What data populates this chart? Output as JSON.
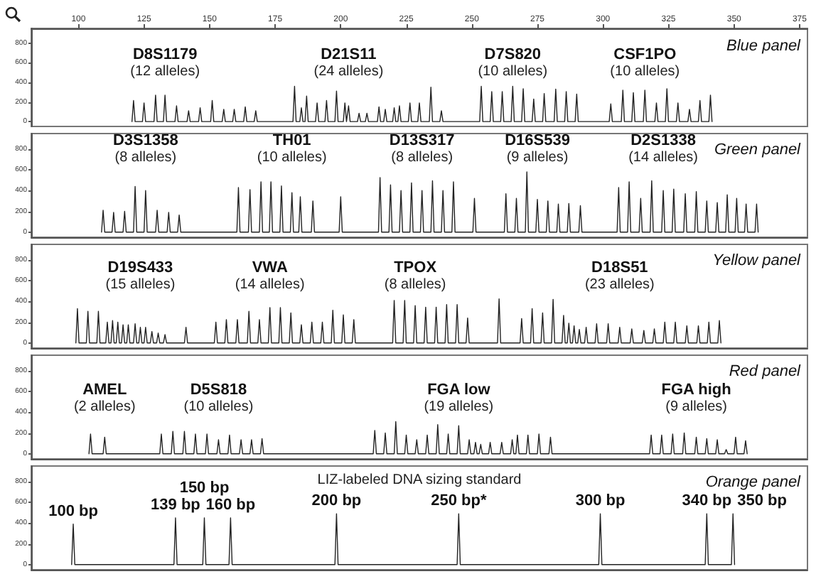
{
  "chart_data": [
    {
      "type": "line",
      "title": "Blue panel",
      "xlim": [
        82,
        378
      ],
      "xticks": [
        100,
        125,
        150,
        175,
        200,
        225,
        250,
        275,
        300,
        325,
        350,
        375
      ],
      "ylim": [
        -50,
        950
      ],
      "yticks": [
        0,
        200,
        400,
        600,
        800
      ],
      "grid": false,
      "x": [
        120.4,
        121,
        121.6,
        124.4,
        125,
        125.6,
        128.8,
        129.4,
        130,
        132.4,
        133,
        133.6,
        136.8,
        137.4,
        138,
        141.4,
        142,
        142.6,
        145.8,
        146.4,
        147,
        150.4,
        151,
        151.6,
        154.8,
        155.4,
        156,
        158.8,
        159.4,
        160,
        163,
        163.6,
        164.2,
        167,
        167.6,
        168.2,
        181.8,
        182.4,
        183,
        184.4,
        185,
        185.6,
        186.4,
        187,
        187.6,
        190.4,
        191,
        191.6,
        194,
        194.6,
        195.2,
        197.8,
        198.4,
        199,
        201,
        201.6,
        202.2,
        202.4,
        203,
        203.6,
        206.4,
        207,
        207.6,
        209.4,
        210,
        210.6,
        214,
        214.6,
        215.2,
        216.4,
        217,
        217.6,
        219.8,
        220.4,
        221,
        221.8,
        222.4,
        223,
        225.8,
        226.4,
        227,
        229.4,
        230,
        230.6,
        233.8,
        234.4,
        235,
        237.8,
        238.4,
        239,
        253,
        253.6,
        254.2,
        257,
        257.6,
        258.2,
        261,
        261.6,
        262.2,
        265,
        265.6,
        266.2,
        269,
        269.6,
        270.2,
        273,
        273.6,
        274.2,
        277,
        277.6,
        278.2,
        281.4,
        282,
        282.6,
        285.4,
        286,
        286.6,
        289.4,
        290,
        290.6,
        302.4,
        303,
        303.6,
        307,
        307.6,
        308.2,
        311,
        311.6,
        312.2,
        315.4,
        316,
        316.6,
        319.8,
        320.4,
        321,
        323.8,
        324.4,
        325,
        328,
        328.6,
        329.2,
        332.4,
        333,
        333.6,
        336.4,
        337,
        337.6,
        340.4,
        341,
        341.6
      ],
      "series": [
        {
          "color": "#222222",
          "values": [
            0,
            215,
            0,
            0,
            190,
            0,
            0,
            270,
            0,
            0,
            270,
            0,
            0,
            160,
            0,
            0,
            110,
            0,
            0,
            140,
            0,
            0,
            215,
            0,
            0,
            125,
            0,
            0,
            125,
            0,
            0,
            150,
            0,
            0,
            110,
            0,
            0,
            360,
            0,
            0,
            140,
            0,
            0,
            260,
            0,
            0,
            190,
            0,
            0,
            215,
            0,
            0,
            310,
            0,
            0,
            190,
            0,
            0,
            160,
            0,
            0,
            85,
            0,
            0,
            85,
            0,
            0,
            150,
            0,
            0,
            125,
            0,
            0,
            140,
            0,
            0,
            160,
            0,
            0,
            190,
            0,
            0,
            190,
            0,
            0,
            350,
            0,
            0,
            110,
            0,
            0,
            360,
            0,
            0,
            305,
            0,
            0,
            305,
            0,
            0,
            360,
            0,
            0,
            335,
            0,
            0,
            230,
            0,
            0,
            285,
            0,
            0,
            330,
            0,
            0,
            305,
            0,
            0,
            280,
            0,
            0,
            180,
            0,
            0,
            320,
            0,
            0,
            295,
            0,
            0,
            320,
            0,
            0,
            190,
            0,
            0,
            335,
            0,
            0,
            190,
            0,
            0,
            125,
            0,
            0,
            215,
            0,
            0,
            270,
            0
          ]
        }
      ],
      "annotations": [
        {
          "text": "D8S1179\n(12 alleles)",
          "x": 133,
          "y": 270
        },
        {
          "text": "D21S11\n(24 alleles)",
          "x": 203,
          "y": 160
        },
        {
          "text": "D7S820\n(10 alleles)",
          "x": 265.6,
          "y": 360
        },
        {
          "text": "CSF1PO\n(10 alleles)",
          "x": 316,
          "y": 320
        }
      ]
    },
    {
      "type": "line",
      "title": "Green panel",
      "tick_labels": "y",
      "xlim": [
        82,
        378
      ],
      "ylim": [
        -50,
        950
      ],
      "yticks": [
        0,
        200,
        400,
        600,
        800
      ],
      "grid": false,
      "x": [
        108.8,
        109.4,
        110,
        112.8,
        113.4,
        114,
        117,
        117.6,
        118.2,
        121,
        121.6,
        122.2,
        125,
        125.6,
        126.2,
        129.4,
        130,
        130.6,
        133.8,
        134.4,
        135,
        137.8,
        138.4,
        139,
        160.4,
        161,
        161.6,
        164.8,
        165.4,
        166,
        169,
        169.6,
        170.2,
        172.8,
        173.4,
        174,
        176.8,
        177.4,
        178,
        180.8,
        181.4,
        182,
        184,
        184.6,
        185.2,
        188.8,
        189.4,
        190,
        199.4,
        200,
        200.6,
        214.4,
        215,
        215.6,
        218.4,
        219,
        219.6,
        222.4,
        223,
        223.6,
        226.4,
        227,
        227.6,
        230.4,
        231,
        231.6,
        234.4,
        235,
        235.6,
        238.4,
        239,
        239.6,
        242.4,
        243,
        243.6,
        250.4,
        251,
        251.6,
        262.4,
        263,
        263.6,
        266.4,
        267,
        267.6,
        270.4,
        271,
        271.6,
        274.4,
        275,
        275.6,
        278.4,
        279,
        279.6,
        282.4,
        283,
        283.6,
        286.4,
        287,
        287.6,
        290.8,
        291.4,
        292,
        305.4,
        306,
        306.6,
        309.4,
        310,
        310.6,
        313.8,
        314.4,
        315,
        318,
        318.6,
        319.2,
        322.4,
        323,
        323.6,
        326.4,
        327,
        327.6,
        330.8,
        331.4,
        332,
        335,
        335.6,
        336.2,
        339,
        339.6,
        340.2,
        343,
        343.6,
        344.2,
        346.8,
        347.4,
        348,
        350.4,
        351,
        351.6,
        354,
        354.6,
        355.2,
        358,
        358.6,
        359.2
      ],
      "series": [
        {
          "color": "#222222",
          "values": [
            0,
            210,
            0,
            0,
            190,
            0,
            0,
            200,
            0,
            0,
            440,
            0,
            0,
            400,
            0,
            0,
            210,
            0,
            0,
            190,
            0,
            0,
            165,
            0,
            0,
            430,
            0,
            0,
            410,
            0,
            0,
            485,
            0,
            0,
            485,
            0,
            0,
            445,
            0,
            0,
            380,
            0,
            0,
            340,
            0,
            0,
            300,
            0,
            0,
            340,
            0,
            0,
            525,
            0,
            0,
            455,
            0,
            0,
            400,
            0,
            0,
            475,
            0,
            0,
            400,
            0,
            0,
            495,
            0,
            0,
            400,
            0,
            0,
            485,
            0,
            0,
            325,
            0,
            0,
            370,
            0,
            0,
            325,
            0,
            0,
            580,
            0,
            0,
            315,
            0,
            0,
            300,
            0,
            0,
            270,
            0,
            0,
            275,
            0,
            0,
            255,
            0,
            0,
            430,
            0,
            0,
            485,
            0,
            0,
            325,
            0,
            0,
            495,
            0,
            0,
            400,
            0,
            0,
            415,
            0,
            0,
            370,
            0,
            0,
            390,
            0,
            0,
            300,
            0,
            0,
            285,
            0,
            0,
            360,
            0,
            0,
            325,
            0,
            0,
            270,
            0,
            0,
            270,
            0
          ]
        }
      ],
      "annotations": [
        {
          "text": "D3S1358\n(8 alleles)",
          "x": 125.6,
          "y": 400
        },
        {
          "text": "TH01\n(10 alleles)",
          "x": 181.4,
          "y": 380
        },
        {
          "text": "D13S317\n(8 alleles)",
          "x": 231,
          "y": 400
        },
        {
          "text": "D16S539\n(9 alleles)",
          "x": 275,
          "y": 315
        },
        {
          "text": "D2S1338\n(14 alleles)",
          "x": 323,
          "y": 400
        }
      ]
    },
    {
      "type": "line",
      "title": "Yellow panel",
      "tick_labels": "y",
      "xlim": [
        82,
        378
      ],
      "ylim": [
        -50,
        950
      ],
      "yticks": [
        0,
        200,
        400,
        600,
        800
      ],
      "grid": false,
      "x": [
        99,
        99.6,
        100.2,
        103,
        103.6,
        104.2,
        107,
        107.6,
        108.2,
        110.4,
        111,
        111.6,
        112.4,
        113,
        113.6,
        114.4,
        115,
        115.6,
        116.4,
        117,
        117.6,
        118.4,
        119,
        119.6,
        121,
        121.6,
        122.2,
        123,
        123.6,
        124.2,
        125,
        125.6,
        126.2,
        127.4,
        128,
        128.6,
        129.8,
        130.4,
        131,
        132.4,
        133,
        133.6,
        140.4,
        141,
        141.6,
        151.8,
        152.4,
        153,
        155.8,
        156.4,
        157,
        160,
        160.6,
        161.2,
        164.4,
        165,
        165.6,
        168.4,
        169,
        169.6,
        172.4,
        173,
        173.6,
        176.4,
        177,
        177.6,
        180.4,
        181,
        181.6,
        184.4,
        185,
        185.6,
        188.4,
        189,
        189.6,
        192.4,
        193,
        193.6,
        196.4,
        197,
        197.6,
        200.4,
        201,
        201.6,
        204.4,
        205,
        205.6,
        219.8,
        220.4,
        221,
        223.8,
        224.4,
        225,
        227.8,
        228.4,
        229,
        231.8,
        232.4,
        233,
        235.8,
        236.4,
        237,
        239.8,
        240.4,
        241,
        243.8,
        244.4,
        245,
        247.8,
        248.4,
        249,
        259.8,
        260.4,
        261,
        268.4,
        269,
        269.6,
        272.4,
        273,
        273.6,
        276.4,
        277,
        277.6,
        280.4,
        281,
        281.6,
        284.4,
        285,
        285.6,
        286.4,
        287,
        287.6,
        288.4,
        289,
        289.6,
        290.4,
        291,
        291.6,
        293,
        293.6,
        294.2,
        297,
        297.6,
        298.2,
        301.4,
        302,
        302.6,
        305.8,
        306.4,
        307,
        310.4,
        311,
        311.6,
        315,
        315.6,
        316.2,
        319,
        319.6,
        320.2,
        323,
        323.6,
        324.2,
        327,
        327.6,
        328.2,
        331.4,
        332,
        332.6,
        335.8,
        336.4,
        337,
        339.8,
        340.4,
        341,
        343.8,
        344.4,
        345
      ],
      "series": [
        {
          "color": "#222222",
          "values": [
            0,
            330,
            0,
            0,
            305,
            0,
            0,
            305,
            0,
            0,
            200,
            0,
            0,
            215,
            0,
            0,
            200,
            0,
            0,
            175,
            0,
            0,
            175,
            0,
            0,
            185,
            0,
            0,
            150,
            0,
            0,
            150,
            0,
            0,
            110,
            0,
            0,
            95,
            0,
            0,
            80,
            0,
            0,
            150,
            0,
            0,
            200,
            0,
            0,
            225,
            0,
            0,
            225,
            0,
            0,
            305,
            0,
            0,
            225,
            0,
            0,
            340,
            0,
            0,
            340,
            0,
            0,
            290,
            0,
            0,
            175,
            0,
            0,
            200,
            0,
            0,
            200,
            0,
            0,
            315,
            0,
            0,
            270,
            0,
            0,
            225,
            0,
            0,
            410,
            0,
            0,
            410,
            0,
            0,
            360,
            0,
            0,
            345,
            0,
            0,
            345,
            0,
            0,
            370,
            0,
            0,
            370,
            0,
            0,
            240,
            0,
            0,
            425,
            0,
            0,
            235,
            0,
            0,
            330,
            0,
            0,
            290,
            0,
            0,
            420,
            0,
            0,
            265,
            0,
            0,
            190,
            0,
            0,
            165,
            0,
            0,
            130,
            0,
            0,
            150,
            0,
            0,
            185,
            0,
            0,
            185,
            0,
            0,
            150,
            0,
            0,
            135,
            0,
            0,
            120,
            0,
            0,
            135,
            0,
            0,
            200,
            0,
            0,
            200,
            0,
            0,
            165,
            0,
            0,
            165,
            0,
            0,
            200,
            0,
            0,
            215,
            0
          ]
        }
      ],
      "annotations": [
        {
          "text": "D19S433\n(15 alleles)",
          "x": 123.6,
          "y": 150
        },
        {
          "text": "VWA\n(14 alleles)",
          "x": 173,
          "y": 340
        },
        {
          "text": "TPOX\n(8 alleles)",
          "x": 228.4,
          "y": 360
        },
        {
          "text": "D18S51\n(23 alleles)",
          "x": 306.4,
          "y": 150
        }
      ]
    },
    {
      "type": "line",
      "title": "Red panel",
      "tick_labels": "y",
      "xlim": [
        82,
        378
      ],
      "ylim": [
        -50,
        950
      ],
      "yticks": [
        0,
        200,
        400,
        600,
        800
      ],
      "grid": false,
      "x": [
        104,
        104.6,
        105.2,
        109.4,
        110,
        110.6,
        131,
        131.6,
        132.2,
        135.4,
        136,
        136.6,
        139.8,
        140.4,
        141,
        144,
        144.6,
        145.2,
        148.4,
        149,
        149.6,
        152.8,
        153.4,
        154,
        157,
        157.6,
        158.2,
        161.4,
        162,
        162.6,
        165.4,
        166,
        166.6,
        169.4,
        170,
        170.6,
        212.4,
        213,
        213.6,
        216.4,
        217,
        217.6,
        220.4,
        221,
        221.6,
        224.4,
        225,
        225.6,
        228.4,
        229,
        229.6,
        232.4,
        233,
        233.6,
        236.4,
        237,
        237.6,
        240.4,
        241,
        241.6,
        244.4,
        245,
        245.6,
        248.4,
        249,
        249.6,
        250.8,
        251.4,
        252,
        252.8,
        253.4,
        254,
        256.4,
        257,
        257.6,
        260.8,
        261.4,
        262,
        264.8,
        265.4,
        266,
        266.8,
        267.4,
        268,
        270.8,
        271.4,
        272,
        275,
        275.6,
        276.2,
        279.4,
        280,
        280.6,
        317.8,
        318.4,
        319,
        321.8,
        322.4,
        323,
        326,
        326.6,
        327.2,
        330.4,
        331,
        331.6,
        335,
        335.6,
        336.2,
        339,
        339.6,
        340.2,
        343,
        343.6,
        344.2,
        346.4,
        347,
        347.6,
        350,
        350.6,
        351.2,
        353.8,
        354.4,
        355
      ],
      "series": [
        {
          "color": "#222222",
          "values": [
            0,
            190,
            0,
            0,
            160,
            0,
            0,
            190,
            0,
            0,
            215,
            0,
            0,
            215,
            0,
            0,
            190,
            0,
            0,
            190,
            0,
            0,
            135,
            0,
            0,
            180,
            0,
            0,
            135,
            0,
            0,
            135,
            0,
            0,
            145,
            0,
            0,
            225,
            0,
            0,
            200,
            0,
            0,
            310,
            0,
            0,
            180,
            0,
            0,
            135,
            0,
            0,
            180,
            0,
            0,
            280,
            0,
            0,
            190,
            0,
            0,
            270,
            0,
            0,
            135,
            0,
            0,
            110,
            0,
            0,
            90,
            0,
            0,
            110,
            0,
            0,
            110,
            0,
            0,
            135,
            0,
            0,
            180,
            0,
            0,
            180,
            0,
            0,
            190,
            0,
            0,
            160,
            0,
            0,
            180,
            0,
            0,
            180,
            0,
            0,
            190,
            0,
            0,
            200,
            0,
            0,
            160,
            0,
            0,
            145,
            0,
            0,
            135,
            0,
            0,
            40,
            0,
            0,
            160,
            0,
            0,
            125,
            0
          ]
        }
      ],
      "annotations": [
        {
          "text": "AMEL\n(2 alleles)",
          "x": 110,
          "y": 160
        },
        {
          "text": "D5S818\n(10 alleles)",
          "x": 153.4,
          "y": 135
        },
        {
          "text": "FGA low\n(19 alleles)",
          "x": 245,
          "y": 270
        },
        {
          "text": "FGA high\n(9 alleles)",
          "x": 335.6,
          "y": 160
        }
      ]
    },
    {
      "type": "line",
      "title": "Orange panel",
      "tick_labels": "y",
      "xlim": [
        82,
        378
      ],
      "ylim": [
        -50,
        950
      ],
      "yticks": [
        0,
        200,
        400,
        600,
        800
      ],
      "grid": false,
      "x": [
        97.4,
        98,
        98.6,
        136.4,
        137,
        137.6,
        147.4,
        148,
        148.6,
        157.4,
        158,
        158.6,
        197.8,
        198.4,
        199,
        244.4,
        245,
        245.6,
        298.4,
        299,
        299.6,
        339,
        339.6,
        340.2,
        349,
        349.6,
        350.2
      ],
      "series": [
        {
          "color": "#222222",
          "values": [
            0,
            390,
            0,
            0,
            450,
            0,
            0,
            450,
            0,
            0,
            450,
            0,
            0,
            490,
            0,
            0,
            490,
            0,
            0,
            490,
            0,
            0,
            490,
            0,
            0,
            490,
            0
          ]
        }
      ],
      "annotations": [
        "LIZ-labeled DNA sizing standard",
        {
          "text": "100 bp",
          "x": 98,
          "y": 390
        },
        {
          "text": "139 bp",
          "x": 137,
          "y": 450
        },
        {
          "text": "150 bp",
          "x": 148,
          "y": 450
        },
        {
          "text": "160 bp",
          "x": 158,
          "y": 450
        },
        {
          "text": "200 bp",
          "x": 198.4,
          "y": 490
        },
        {
          "text": "250 bp*",
          "x": 245,
          "y": 490
        },
        {
          "text": "300 bp",
          "x": 299,
          "y": 490
        },
        {
          "text": "340 bp",
          "x": 339.6,
          "y": 490
        },
        {
          "text": "350 bp",
          "x": 349.6,
          "y": 490
        }
      ]
    }
  ]
}
